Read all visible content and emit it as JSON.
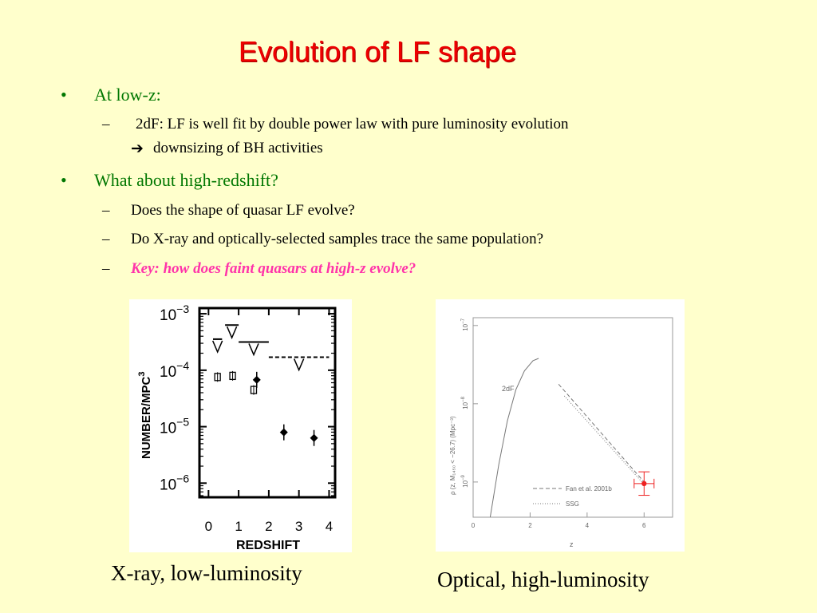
{
  "slide": {
    "title": "Evolution of LF shape",
    "bullets": [
      {
        "text": "At low-z:",
        "subitems": [
          {
            "line1": "2dF: LF is well fit by double power law with pure luminosity evolution",
            "arrow": "➔",
            "line2": "downsizing of BH activities"
          }
        ]
      },
      {
        "text": "What about high-redshift?",
        "subitems": [
          {
            "text": "Does the shape of quasar LF evolve?"
          },
          {
            "text": "Do X-ray and optically-selected samples trace the same population?"
          },
          {
            "text": "Key: how does faint quasars at high-z evolve?"
          }
        ]
      }
    ],
    "bullet_glyph": "•",
    "dash_glyph": "–",
    "key_color": "#ff33aa",
    "title_color": "#ee0000",
    "bullet_color": "#007700"
  },
  "captions": {
    "left": "X-ray, low-luminosity",
    "right": "Optical, high-luminosity"
  },
  "chart_data": [
    {
      "type": "scatter",
      "xlabel": "REDSHIFT",
      "ylabel": "NUMBER/MPC",
      "ylabel_sup": "3",
      "xlim": [
        -0.3,
        4.2
      ],
      "ylim": [
        -6.25,
        -2.9
      ],
      "yscale": "log",
      "xticks": [
        "0",
        "1",
        "2",
        "3",
        "4"
      ],
      "yticks": [
        {
          "base": "10",
          "exp": "−3"
        },
        {
          "base": "10",
          "exp": "−4"
        },
        {
          "base": "10",
          "exp": "−5"
        },
        {
          "base": "10",
          "exp": "−6"
        }
      ],
      "series": [
        {
          "marker": "filled-diamond",
          "points": [
            [
              1.6,
              -4.17
            ],
            [
              2.5,
              -5.1
            ],
            [
              3.5,
              -5.2
            ]
          ]
        },
        {
          "marker": "open-square",
          "points": [
            [
              0.3,
              -4.12
            ],
            [
              0.8,
              -4.1
            ],
            [
              1.5,
              -4.35
            ]
          ]
        }
      ],
      "upper_limits": [
        {
          "x0": 0.15,
          "x1": 0.45,
          "y": -3.45
        },
        {
          "x0": 0.55,
          "x1": 1.0,
          "y": -3.2
        },
        {
          "x0": 1.0,
          "x1": 2.0,
          "y": -3.5
        },
        {
          "x0": 2.0,
          "x1": 4.0,
          "y": -3.77,
          "dashed": true
        }
      ]
    },
    {
      "type": "line",
      "xlabel": "z",
      "ylabel": "ρ (z, M₁₄₅₀ < −26.7) (Mpc⁻³)",
      "xlim": [
        0,
        7
      ],
      "ylim": [
        -9.45,
        -6.9
      ],
      "yscale": "log",
      "xticks": [
        "0",
        "2",
        "4",
        "6"
      ],
      "yticks": [
        {
          "base": "10",
          "exp": "−7"
        },
        {
          "base": "10",
          "exp": "−8"
        },
        {
          "base": "10",
          "exp": "−9"
        }
      ],
      "curve_label": "2dF",
      "series": [
        {
          "name": "2dF",
          "style": "solid",
          "x": [
            0.6,
            0.9,
            1.2,
            1.5,
            1.8,
            2.1,
            2.3
          ],
          "y": [
            -9.45,
            -8.78,
            -8.22,
            -7.82,
            -7.58,
            -7.45,
            -7.42
          ]
        },
        {
          "name": "Fan et al. 2001b",
          "style": "dashed",
          "x": [
            3.0,
            6.0
          ],
          "y": [
            -7.75,
            -9.0
          ]
        },
        {
          "name": "SSG",
          "style": "dotted",
          "x": [
            3.2,
            6.0
          ],
          "y": [
            -7.9,
            -9.03
          ]
        }
      ],
      "legend": [
        {
          "style": "dashed",
          "label": "Fan et al. 2001b"
        },
        {
          "style": "dotted",
          "label": "SSG"
        }
      ],
      "legend_position": "bottom-right",
      "data_point": {
        "x": 6.0,
        "y": -9.02,
        "xerr": 0.35,
        "yerr": 0.15,
        "color": "#ee2222"
      }
    }
  ]
}
